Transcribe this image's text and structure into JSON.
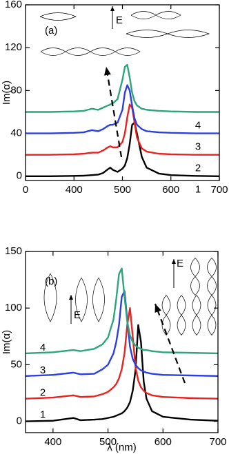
{
  "chart_data": [
    {
      "type": "line",
      "panel_label": "(a)",
      "y_label": "Im(α)",
      "field_labels": [
        "E"
      ],
      "x": [
        300,
        350,
        400,
        420,
        437,
        450,
        460,
        470,
        475,
        480,
        490,
        500,
        505,
        510,
        515,
        520,
        525,
        530,
        540,
        550,
        575,
        600,
        650,
        700
      ],
      "xlim": [
        300,
        700
      ],
      "xticks": [
        {
          "value": 300,
          "label": "0"
        },
        400,
        500,
        600,
        700
      ],
      "ylim": [
        -4,
        160
      ],
      "yticks": [
        0,
        40,
        80,
        120,
        160
      ],
      "series": [
        {
          "name": "1",
          "color": "#000000",
          "values": [
            0,
            0,
            0.3,
            0.5,
            1,
            1.5,
            3,
            6.5,
            8,
            6,
            4,
            7,
            10,
            17,
            30,
            48,
            50,
            40,
            18,
            8,
            2.5,
            1,
            0.3,
            0
          ]
        },
        {
          "name": "2",
          "color": "#e8231f",
          "values": [
            20,
            20,
            20.5,
            21,
            22,
            22,
            24,
            27,
            28,
            27,
            27,
            32,
            40,
            55,
            67,
            64,
            50,
            36,
            26,
            23,
            21,
            20.5,
            20,
            20
          ]
        },
        {
          "name": "3",
          "color": "#2b3fe0",
          "values": [
            40,
            40,
            40.5,
            41,
            43,
            42,
            44,
            47,
            48,
            48,
            50,
            62,
            78,
            85,
            80,
            66,
            54,
            48,
            44,
            42,
            41,
            40.5,
            40,
            40
          ]
        },
        {
          "name": "4",
          "color": "#2ca57c",
          "values": [
            60,
            60,
            60.5,
            61,
            63,
            62,
            64,
            66,
            67,
            68,
            72,
            90,
            102,
            104,
            92,
            78,
            70,
            66,
            63,
            62,
            61,
            60.5,
            60,
            60
          ]
        }
      ]
    },
    {
      "type": "line",
      "panel_label": "(b)",
      "y_label": "Im(α)",
      "x_label": "λ (nm)",
      "field_labels": [
        "E",
        "E"
      ],
      "x": [
        350,
        400,
        437,
        450,
        475,
        490,
        500,
        510,
        515,
        520,
        525,
        530,
        535,
        540,
        545,
        550,
        555,
        560,
        565,
        570,
        580,
        600,
        650,
        700
      ],
      "xlim": [
        350,
        700
      ],
      "xticks": [
        400,
        500,
        600,
        700
      ],
      "ylim": [
        -10,
        150
      ],
      "yticks": [
        0,
        50,
        100,
        150
      ],
      "series": [
        {
          "name": "1",
          "color": "#000000",
          "values": [
            0,
            0.5,
            3,
            1,
            1.5,
            2,
            3,
            4,
            5,
            6,
            7,
            9,
            12,
            17,
            27,
            45,
            85,
            70,
            35,
            20,
            9,
            4,
            1.5,
            0.5
          ]
        },
        {
          "name": "2",
          "color": "#e8231f",
          "values": [
            20,
            21,
            23,
            21.5,
            22,
            24,
            26,
            30,
            33,
            38,
            46,
            60,
            85,
            100,
            75,
            48,
            36,
            30,
            27,
            25,
            23,
            21.5,
            20.5,
            20
          ]
        },
        {
          "name": "3",
          "color": "#2b3fe0",
          "values": [
            40,
            41,
            43,
            41.5,
            42,
            46,
            50,
            60,
            70,
            85,
            110,
            115,
            90,
            66,
            55,
            50,
            47,
            45,
            44,
            43,
            42,
            41,
            40.5,
            40
          ]
        },
        {
          "name": "4",
          "color": "#2ca57c",
          "values": [
            60,
            61,
            63,
            62,
            64,
            68,
            74,
            90,
            108,
            130,
            135,
            110,
            88,
            76,
            70,
            67,
            65,
            64,
            63,
            63,
            62,
            61,
            60.5,
            60
          ]
        }
      ]
    }
  ]
}
